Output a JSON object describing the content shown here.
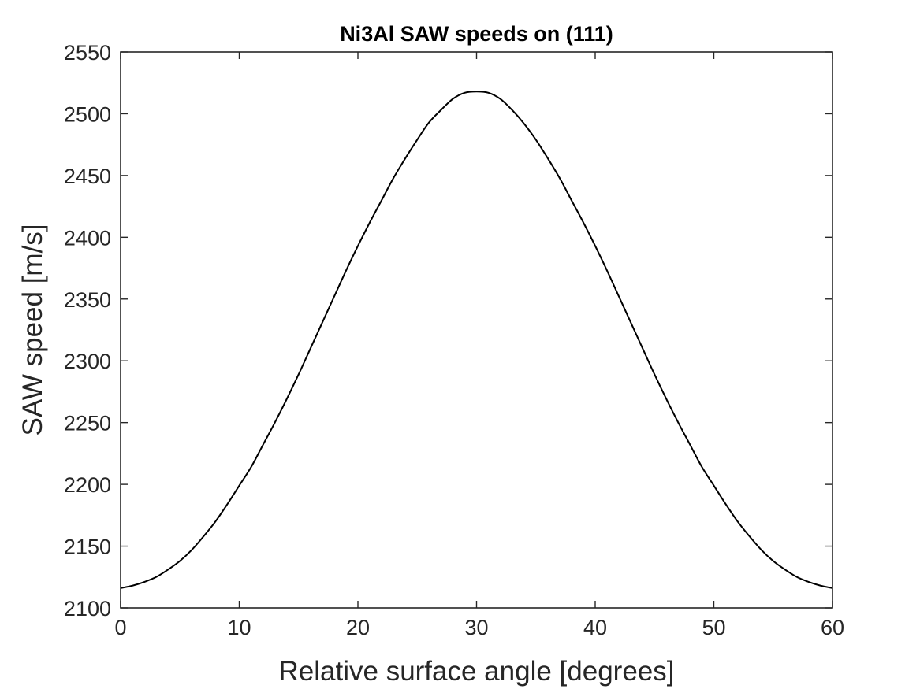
{
  "chart_data": {
    "type": "line",
    "title": "Ni3Al SAW speeds on (111)",
    "xlabel": "Relative surface angle [degrees]",
    "ylabel": "SAW speed [m/s]",
    "xlim": [
      0,
      60
    ],
    "ylim": [
      2100,
      2550
    ],
    "xticks": [
      0,
      10,
      20,
      30,
      40,
      50,
      60
    ],
    "yticks": [
      2100,
      2150,
      2200,
      2250,
      2300,
      2350,
      2400,
      2450,
      2500,
      2550
    ],
    "grid": false,
    "box": true,
    "line_color": "#000000",
    "series": [
      {
        "x": [
          0,
          1,
          2,
          3,
          4,
          5,
          6,
          7,
          8,
          9,
          10,
          11,
          12,
          13,
          14,
          15,
          16,
          17,
          18,
          19,
          20,
          21,
          22,
          23,
          24,
          25,
          26,
          27,
          28,
          29,
          30,
          31,
          32,
          33,
          34,
          35,
          36,
          37,
          38,
          39,
          40,
          41,
          42,
          43,
          44,
          45,
          46,
          47,
          48,
          49,
          50,
          51,
          52,
          53,
          54,
          55,
          56,
          57,
          58,
          59,
          60
        ],
        "values": [
          2116,
          2118,
          2121,
          2125,
          2131,
          2138,
          2147,
          2158,
          2170,
          2184,
          2199,
          2214,
          2232,
          2250,
          2269,
          2289,
          2310,
          2331,
          2352,
          2373,
          2393,
          2412,
          2430,
          2448,
          2464,
          2479,
          2493,
          2503,
          2512,
          2517,
          2518,
          2517,
          2512,
          2503,
          2492,
          2479,
          2464,
          2448,
          2430,
          2412,
          2393,
          2373,
          2352,
          2331,
          2310,
          2289,
          2269,
          2250,
          2232,
          2214,
          2199,
          2184,
          2170,
          2158,
          2147,
          2138,
          2131,
          2125,
          2121,
          2118,
          2116
        ]
      }
    ]
  }
}
